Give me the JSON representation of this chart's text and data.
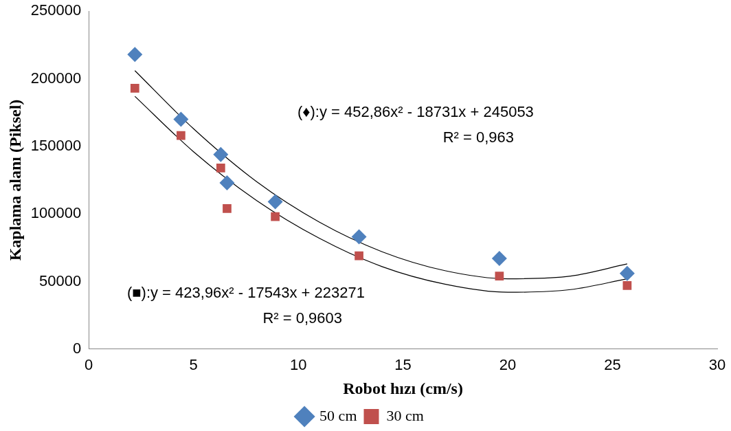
{
  "chart_data": {
    "type": "scatter",
    "xlabel": "Robot hızı (cm/s)",
    "ylabel": "Kaplama alanı (Piksel)",
    "xlim": [
      0,
      30
    ],
    "xticks": [
      0,
      5,
      10,
      15,
      20,
      25,
      30
    ],
    "ylim": [
      0,
      250000
    ],
    "yticks": [
      0,
      50000,
      100000,
      150000,
      200000,
      250000
    ],
    "legend": "bottom",
    "series": [
      {
        "name": "50 cm",
        "color": "#4f81bd",
        "marker": "diamond",
        "x": [
          2.2,
          4.4,
          6.3,
          6.6,
          8.9,
          12.9,
          19.6,
          25.7
        ],
        "values": [
          218000,
          170000,
          144000,
          123000,
          109000,
          83000,
          67000,
          56000
        ]
      },
      {
        "name": "30 cm",
        "color": "#c0504d",
        "marker": "square",
        "x": [
          2.2,
          4.4,
          6.3,
          6.6,
          8.9,
          12.9,
          19.6,
          25.7
        ],
        "values": [
          193000,
          158000,
          134000,
          104000,
          98000,
          69000,
          54000,
          47000
        ]
      },
      {
        "type": "line",
        "color": "#000000",
        "marker": "none",
        "x": [
          2.2,
          5,
          8,
          11,
          14,
          17,
          20,
          23,
          25.7
        ],
        "values": [
          206000,
          163000,
          124000,
          94000,
          72000,
          58000,
          52000,
          54000,
          63000
        ]
      },
      {
        "type": "line",
        "color": "#000000",
        "marker": "none",
        "x": [
          2.2,
          5,
          8,
          11,
          14,
          17,
          20,
          23,
          25.7
        ],
        "values": [
          187000,
          146000,
          110000,
          82000,
          61000,
          48000,
          42000,
          44000,
          52000
        ]
      }
    ],
    "annotations": [
      "(♦):y = 452,86x² - 18731x + 245053",
      "R² = 0,963",
      "(■):y = 423,96x² - 17543x + 223271",
      "R² = 0,9603"
    ]
  }
}
